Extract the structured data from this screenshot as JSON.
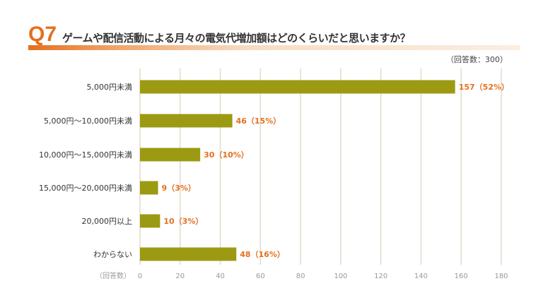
{
  "header": {
    "question_number": "Q7",
    "question_text": "ゲームや配信活動による月々の電気代増加額はどのくらいだと思いますか？",
    "sample_size_text": "（回答数：300）"
  },
  "colors": {
    "accent": "#e4701e",
    "bar": "#9c9a12",
    "grid": "#e0dccc"
  },
  "chart_data": {
    "type": "bar",
    "orientation": "horizontal",
    "title": "ゲームや配信活動による月々の電気代増加額はどのくらいだと思いますか？",
    "xlabel": "（回答数）",
    "ylabel": "",
    "xlim": [
      0,
      180
    ],
    "x_ticks": [
      0,
      20,
      40,
      60,
      80,
      100,
      120,
      140,
      160,
      180
    ],
    "x_tick_labels": [
      "0",
      "20",
      "40",
      "60",
      "80",
      "100",
      "120",
      "140",
      "160",
      "180"
    ],
    "grid": true,
    "categories": [
      "5,000円未満",
      "5,000円〜10,000円未満",
      "10,000円〜15,000円未満",
      "15,000円〜20,000円未満",
      "20,000円以上",
      "わからない"
    ],
    "values": [
      157,
      46,
      30,
      9,
      10,
      48
    ],
    "value_labels": [
      "157（52%）",
      "46（15%）",
      "30（10%）",
      "9（3%）",
      "10（3%）",
      "48（16%）"
    ]
  }
}
